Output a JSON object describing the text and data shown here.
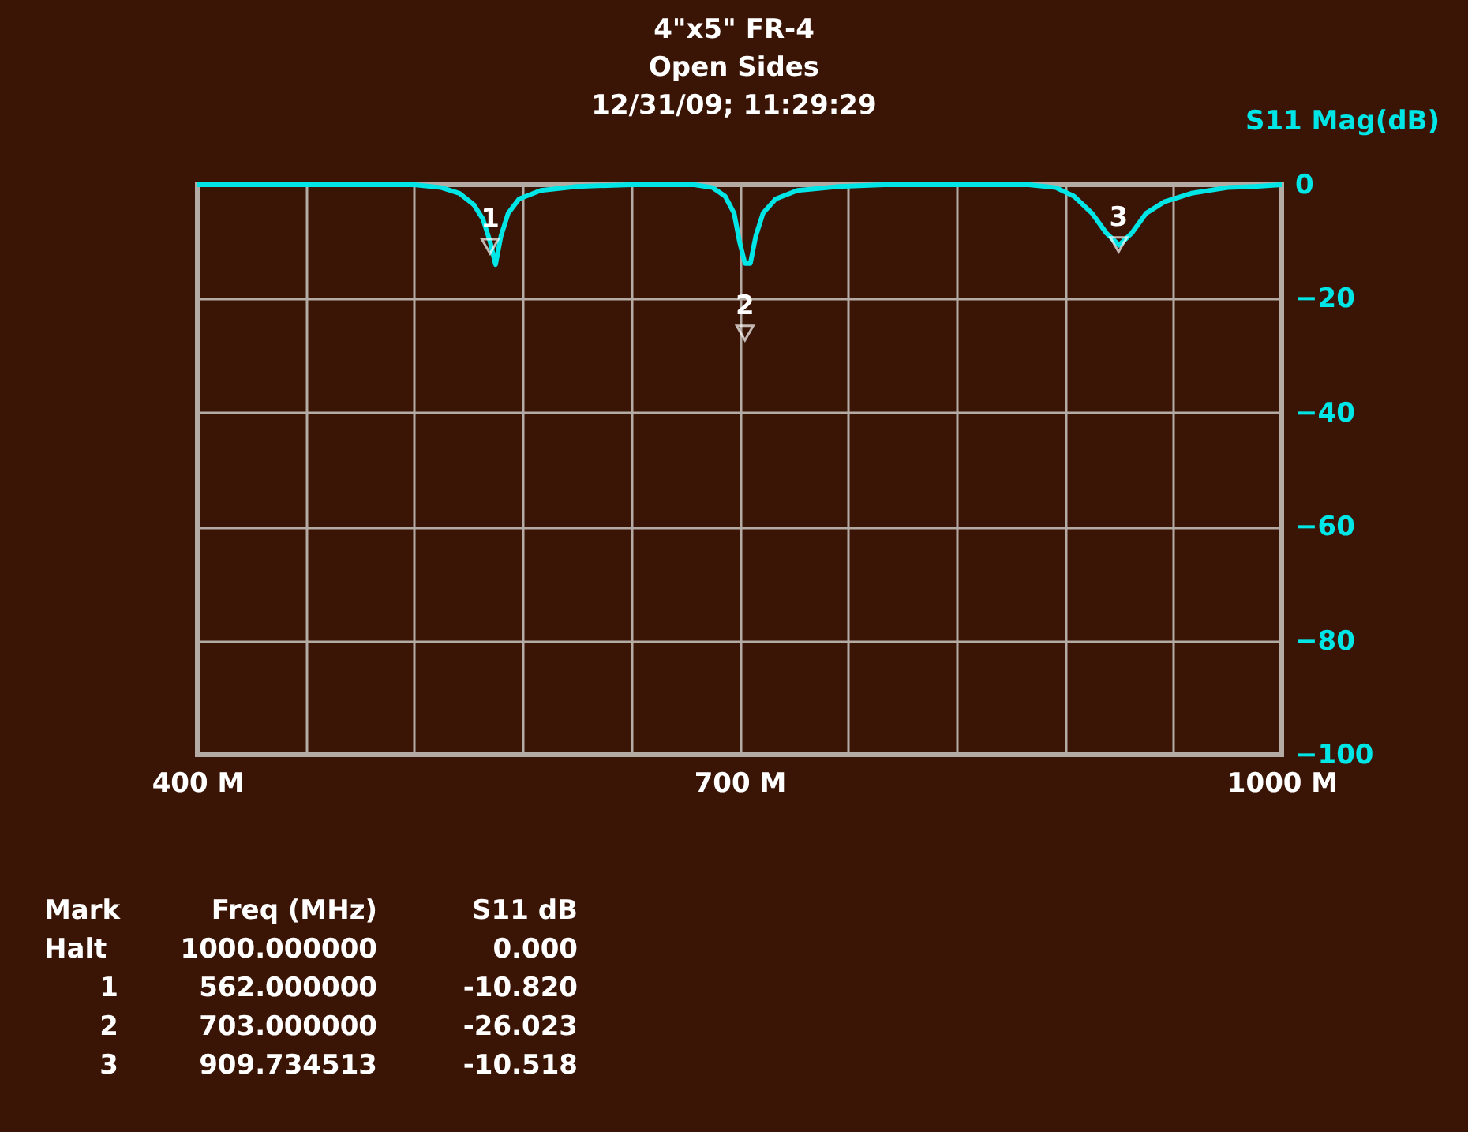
{
  "chart_data": {
    "type": "line",
    "title": "4\"x5\" FR-4",
    "subtitle": "Open Sides\n12/31/09; 11:29:29",
    "ylabel": "S11 Mag(dB)",
    "xlim": [
      400,
      1000
    ],
    "ylim": [
      -100,
      0
    ],
    "xticks": [
      {
        "value": 400,
        "label": "400 M"
      },
      {
        "value": 460,
        "label": null
      },
      {
        "value": 520,
        "label": null
      },
      {
        "value": 580,
        "label": null
      },
      {
        "value": 640,
        "label": null
      },
      {
        "value": 700,
        "label": "700 M"
      },
      {
        "value": 760,
        "label": null
      },
      {
        "value": 820,
        "label": null
      },
      {
        "value": 880,
        "label": null
      },
      {
        "value": 940,
        "label": null
      },
      {
        "value": 1000,
        "label": "1000 M"
      }
    ],
    "yticks": [
      0,
      -20,
      -40,
      -60,
      -80,
      -100
    ],
    "grid": true,
    "series": [
      {
        "type": "line",
        "color": "#00e5e5",
        "line_style": "solid",
        "marker": "none",
        "x": [
          400,
          520,
          535,
          545,
          553,
          558,
          562,
          565,
          568,
          572,
          578,
          590,
          610,
          640,
          675,
          685,
          692,
          697,
          700,
          703,
          706,
          709,
          713,
          720,
          732,
          755,
          780,
          860,
          875,
          885,
          895,
          903,
          910,
          917,
          925,
          935,
          950,
          970,
          985,
          1000
        ],
        "values": [
          0,
          0,
          -0.5,
          -1.5,
          -3.5,
          -6,
          -10,
          -14,
          -9,
          -5,
          -2.5,
          -1,
          -0.3,
          0,
          0,
          -0.5,
          -2,
          -5,
          -10,
          -13.8,
          -13.8,
          -9,
          -5,
          -2.5,
          -1,
          -0.3,
          0,
          0,
          -0.5,
          -2,
          -5,
          -8.5,
          -10.6,
          -8.5,
          -5,
          -3,
          -1.5,
          -0.5,
          -0.3,
          0
        ]
      },
      {
        "type": "scatter",
        "color": "#ffffff",
        "marker": "triangle",
        "x": [
          562,
          703,
          909.734513
        ],
        "values": [
          -10.82,
          -26.023,
          -10.518
        ]
      }
    ],
    "annotations": [
      {
        "text": "1",
        "x": 562,
        "y": -10.82
      },
      {
        "text": "2",
        "x": 703,
        "y": -26.023
      },
      {
        "text": "3",
        "x": 909.734513,
        "y": -10.518
      },
      "Mark",
      "Freq (MHz)",
      "S11 dB",
      "Halt",
      "1000.000000",
      "0.000",
      "1",
      "562.000000",
      "-10.820",
      "2",
      "703.000000",
      "-26.023",
      "3",
      "909.734513",
      "-10.518"
    ]
  }
}
